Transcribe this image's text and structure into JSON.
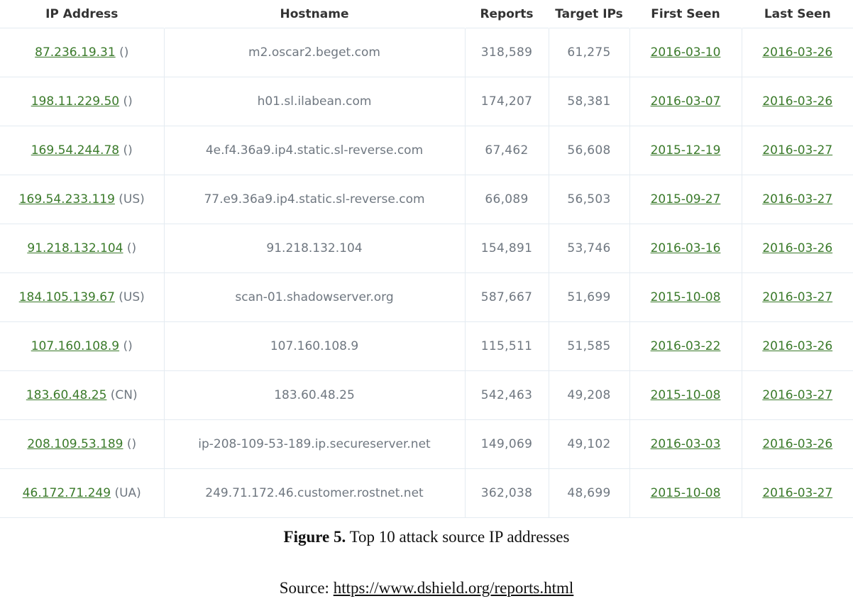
{
  "table": {
    "headers": [
      "IP Address",
      "Hostname",
      "Reports",
      "Target IPs",
      "First Seen",
      "Last Seen"
    ],
    "rows": [
      {
        "ip": "87.236.19.31",
        "country": "()",
        "hostname": "m2.oscar2.beget.com",
        "reports": "318,589",
        "targets": "61,275",
        "first_seen": "2016-03-10",
        "last_seen": "2016-03-26"
      },
      {
        "ip": "198.11.229.50",
        "country": "()",
        "hostname": "h01.sl.ilabean.com",
        "reports": "174,207",
        "targets": "58,381",
        "first_seen": "2016-03-07",
        "last_seen": "2016-03-26"
      },
      {
        "ip": "169.54.244.78",
        "country": "()",
        "hostname": "4e.f4.36a9.ip4.static.sl-reverse.com",
        "reports": "67,462",
        "targets": "56,608",
        "first_seen": "2015-12-19",
        "last_seen": "2016-03-27"
      },
      {
        "ip": "169.54.233.119",
        "country": "(US)",
        "hostname": "77.e9.36a9.ip4.static.sl-reverse.com",
        "reports": "66,089",
        "targets": "56,503",
        "first_seen": "2015-09-27",
        "last_seen": "2016-03-27"
      },
      {
        "ip": "91.218.132.104",
        "country": "()",
        "hostname": "91.218.132.104",
        "reports": "154,891",
        "targets": "53,746",
        "first_seen": "2016-03-16",
        "last_seen": "2016-03-26"
      },
      {
        "ip": "184.105.139.67",
        "country": "(US)",
        "hostname": "scan-01.shadowserver.org",
        "reports": "587,667",
        "targets": "51,699",
        "first_seen": "2015-10-08",
        "last_seen": "2016-03-27"
      },
      {
        "ip": "107.160.108.9",
        "country": "()",
        "hostname": "107.160.108.9",
        "reports": "115,511",
        "targets": "51,585",
        "first_seen": "2016-03-22",
        "last_seen": "2016-03-26"
      },
      {
        "ip": "183.60.48.25",
        "country": "(CN)",
        "hostname": "183.60.48.25",
        "reports": "542,463",
        "targets": "49,208",
        "first_seen": "2015-10-08",
        "last_seen": "2016-03-27"
      },
      {
        "ip": "208.109.53.189",
        "country": "()",
        "hostname": "ip-208-109-53-189.ip.secureserver.net",
        "reports": "149,069",
        "targets": "49,102",
        "first_seen": "2016-03-03",
        "last_seen": "2016-03-26"
      },
      {
        "ip": "46.172.71.249",
        "country": "(UA)",
        "hostname": "249.71.172.46.customer.rostnet.net",
        "reports": "362,038",
        "targets": "48,699",
        "first_seen": "2015-10-08",
        "last_seen": "2016-03-27"
      }
    ]
  },
  "caption": {
    "label": "Figure 5.",
    "text": " Top 10 attack source IP addresses"
  },
  "source": {
    "label": "Source: ",
    "url": "https://www.dshield.org/reports.html"
  },
  "colors": {
    "link": "#3a7a2a",
    "text": "#6f7780",
    "border": "#e4ebf1"
  }
}
